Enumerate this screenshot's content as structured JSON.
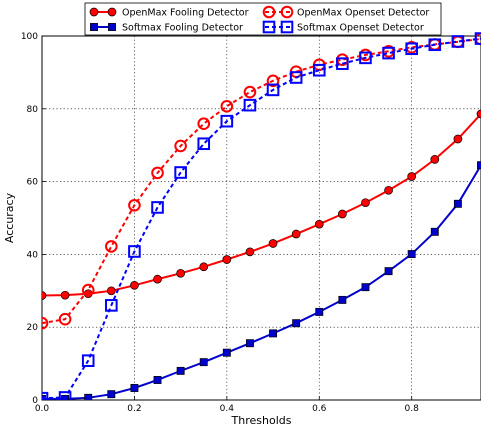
{
  "chart_data": {
    "type": "line",
    "title": "",
    "xlabel": "Thresholds",
    "ylabel": "Accuracy",
    "xlim": [
      0.0,
      0.95
    ],
    "ylim": [
      0,
      100
    ],
    "x_ticks": [
      "0.0",
      "0.2",
      "0.4",
      "0.6",
      "0.8"
    ],
    "y_ticks": [
      "0",
      "20",
      "40",
      "60",
      "80",
      "100"
    ],
    "grid": true,
    "legend_position": "top (above plot)",
    "x": [
      0.0,
      0.05,
      0.1,
      0.15,
      0.2,
      0.25,
      0.3,
      0.35,
      0.4,
      0.45,
      0.5,
      0.55,
      0.6,
      0.65,
      0.7,
      0.75,
      0.8,
      0.85,
      0.9,
      0.95
    ],
    "series": [
      {
        "name": "OpenMax Fooling Detector",
        "color": "#ff0000",
        "line_style": "solid",
        "marker": "filled-circle",
        "values": [
          28.7,
          28.8,
          29.2,
          30.0,
          31.5,
          33.2,
          34.8,
          36.6,
          38.6,
          40.7,
          43.0,
          45.6,
          48.3,
          51.1,
          54.2,
          57.6,
          61.4,
          66.1,
          71.7,
          78.6
        ]
      },
      {
        "name": "Softmax Fooling Detector",
        "color": "#0000cc",
        "line_style": "solid",
        "marker": "filled-square",
        "values": [
          0.3,
          0.3,
          0.6,
          1.6,
          3.3,
          5.5,
          8.0,
          10.4,
          13.0,
          15.6,
          18.3,
          21.1,
          24.2,
          27.5,
          31.0,
          35.4,
          40.1,
          46.2,
          53.9,
          64.5
        ]
      },
      {
        "name": "OpenMax Openset Detector",
        "color": "#ff0000",
        "line_style": "dashed",
        "marker": "open-circle",
        "values": [
          21.1,
          22.2,
          30.2,
          42.2,
          53.5,
          62.4,
          69.8,
          75.9,
          80.7,
          84.6,
          87.7,
          90.2,
          92.1,
          93.5,
          94.8,
          95.8,
          96.9,
          97.7,
          98.4,
          99.2
        ]
      },
      {
        "name": "Softmax Openset Detector",
        "color": "#0000ff",
        "line_style": "dashed",
        "marker": "open-square",
        "values": [
          0.5,
          0.7,
          10.8,
          26.0,
          40.8,
          52.9,
          62.5,
          70.4,
          76.6,
          81.0,
          85.2,
          88.6,
          90.6,
          92.4,
          94.0,
          95.3,
          96.5,
          97.6,
          98.5,
          99.3
        ]
      }
    ]
  }
}
